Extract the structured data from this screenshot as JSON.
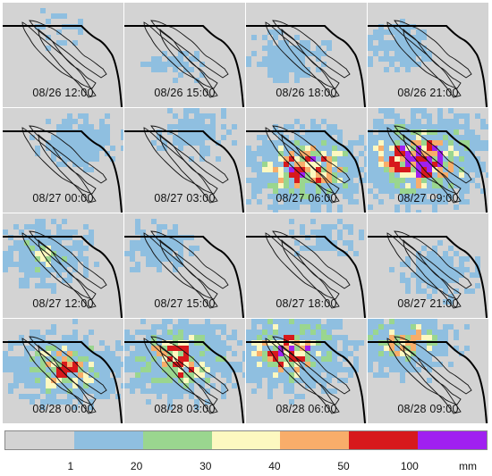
{
  "panels": [
    {
      "label": "08/26 12:00",
      "intensity": 0.25
    },
    {
      "label": "08/26 15:00",
      "intensity": 0.3
    },
    {
      "label": "08/26 18:00",
      "intensity": 0.45
    },
    {
      "label": "08/26 21:00",
      "intensity": 0.45
    },
    {
      "label": "08/27 00:00",
      "intensity": 0.5
    },
    {
      "label": "08/27 03:00",
      "intensity": 0.45
    },
    {
      "label": "08/27 06:00",
      "intensity": 0.9
    },
    {
      "label": "08/27 09:00",
      "intensity": 1.0
    },
    {
      "label": "08/27 12:00",
      "intensity": 0.6
    },
    {
      "label": "08/27 15:00",
      "intensity": 0.45
    },
    {
      "label": "08/27 18:00",
      "intensity": 0.35
    },
    {
      "label": "08/27 21:00",
      "intensity": 0.45
    },
    {
      "label": "08/28 00:00",
      "intensity": 0.8
    },
    {
      "label": "08/28 03:00",
      "intensity": 0.85
    },
    {
      "label": "08/28 06:00",
      "intensity": 0.9
    },
    {
      "label": "08/28 09:00",
      "intensity": 0.75
    }
  ],
  "legend": {
    "colors": [
      "#d3d3d3",
      "#8fbfe0",
      "#9ad68f",
      "#fdf8c0",
      "#f8ad6a",
      "#d7191c",
      "#a020f0"
    ],
    "ticks": [
      "1",
      "20",
      "30",
      "40",
      "50",
      "100"
    ],
    "unit": "mm"
  }
}
